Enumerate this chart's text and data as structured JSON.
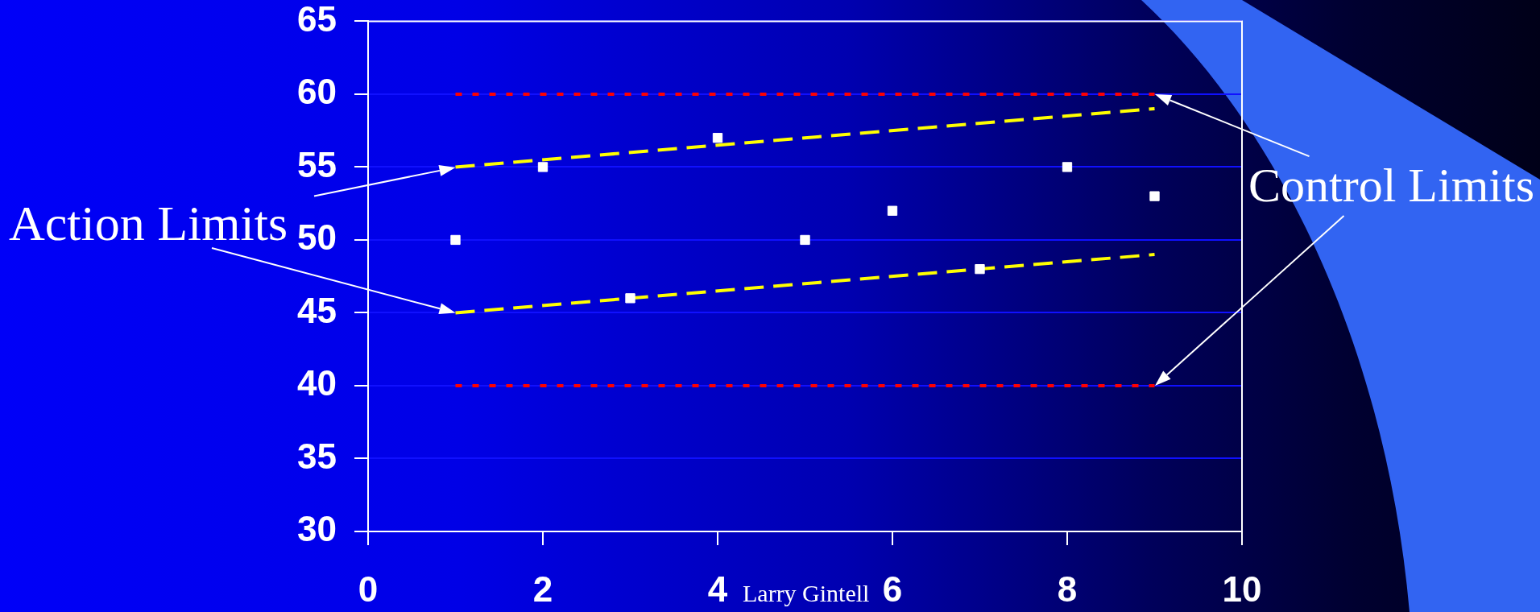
{
  "chart_data": {
    "type": "scatter",
    "annotations": [
      "Action Limits",
      "Control Limits",
      "Larry Gintell"
    ],
    "series": [
      {
        "color": "#ffffff",
        "marker": "square",
        "x": [
          1,
          2,
          3,
          4,
          5,
          6,
          7,
          8,
          9
        ],
        "values": [
          50,
          55,
          46,
          57,
          50,
          52,
          48,
          55,
          53
        ]
      },
      {
        "type": "line",
        "color": "#ffff00",
        "line_style": "dashed",
        "x": [
          1,
          9
        ],
        "values": [
          55,
          59
        ]
      },
      {
        "type": "line",
        "color": "#ffff00",
        "line_style": "dashed",
        "x": [
          1,
          9
        ],
        "values": [
          45,
          49
        ]
      },
      {
        "type": "line",
        "color": "#ff0000",
        "line_style": "dotted",
        "x": [
          1,
          9
        ],
        "values": [
          60,
          60
        ]
      },
      {
        "type": "line",
        "color": "#ff0000",
        "line_style": "dotted",
        "x": [
          1,
          9
        ],
        "values": [
          40,
          40
        ]
      }
    ],
    "xlim": [
      0,
      10
    ],
    "xticks": [
      0,
      2,
      4,
      6,
      8,
      10
    ],
    "ylim": [
      30,
      65
    ],
    "yticks": [
      30,
      35,
      40,
      45,
      50,
      55,
      60,
      65
    ],
    "grid": "y"
  }
}
